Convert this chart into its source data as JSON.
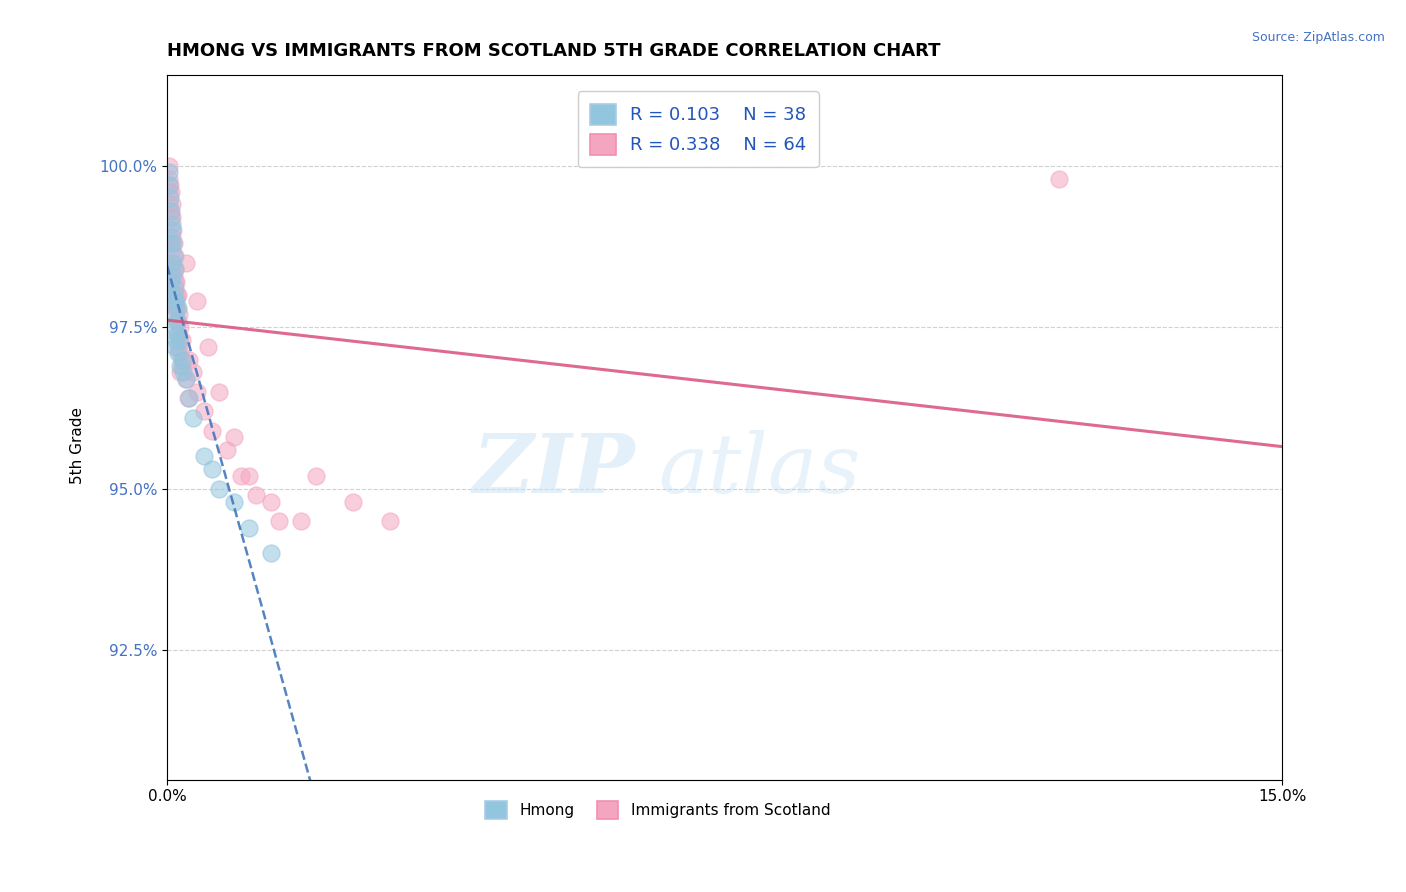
{
  "title": "HMONG VS IMMIGRANTS FROM SCOTLAND 5TH GRADE CORRELATION CHART",
  "source": "Source: ZipAtlas.com",
  "ylabel": "5th Grade",
  "ytick_labels": [
    "92.5%",
    "95.0%",
    "97.5%",
    "100.0%"
  ],
  "ytick_values": [
    92.5,
    95.0,
    97.5,
    100.0
  ],
  "xlim": [
    0.0,
    15.0
  ],
  "ylim": [
    90.5,
    101.4
  ],
  "legend_r1": "R = 0.103",
  "legend_n1": "N = 38",
  "legend_r2": "R = 0.338",
  "legend_n2": "N = 64",
  "color_blue": "#92c5de",
  "color_pink": "#f4a6c0",
  "color_blue_line": "#4477bb",
  "color_pink_line": "#d9507a",
  "hmong_x": [
    0.02,
    0.03,
    0.04,
    0.05,
    0.05,
    0.05,
    0.06,
    0.06,
    0.07,
    0.07,
    0.08,
    0.08,
    0.09,
    0.09,
    0.1,
    0.1,
    0.1,
    0.11,
    0.11,
    0.12,
    0.12,
    0.13,
    0.14,
    0.15,
    0.15,
    0.16,
    0.18,
    0.2,
    0.22,
    0.25,
    0.3,
    0.35,
    0.5,
    0.6,
    0.7,
    0.9,
    1.1,
    1.4
  ],
  "hmong_y": [
    99.9,
    99.7,
    99.5,
    99.3,
    98.8,
    98.2,
    99.1,
    98.5,
    99.0,
    98.3,
    98.8,
    98.0,
    98.6,
    97.9,
    98.4,
    97.7,
    97.2,
    98.1,
    97.5,
    97.9,
    97.3,
    97.6,
    97.4,
    97.8,
    97.1,
    97.3,
    96.9,
    97.0,
    96.8,
    96.7,
    96.4,
    96.1,
    95.5,
    95.3,
    95.0,
    94.8,
    94.4,
    94.0
  ],
  "scotland_x": [
    0.02,
    0.02,
    0.03,
    0.03,
    0.04,
    0.04,
    0.04,
    0.05,
    0.05,
    0.05,
    0.05,
    0.06,
    0.06,
    0.07,
    0.07,
    0.08,
    0.08,
    0.09,
    0.09,
    0.1,
    0.1,
    0.1,
    0.11,
    0.11,
    0.12,
    0.12,
    0.13,
    0.13,
    0.14,
    0.14,
    0.15,
    0.15,
    0.15,
    0.16,
    0.16,
    0.17,
    0.18,
    0.18,
    0.2,
    0.2,
    0.22,
    0.25,
    0.28,
    0.3,
    0.35,
    0.4,
    0.5,
    0.6,
    0.8,
    1.0,
    1.2,
    1.5,
    2.0,
    2.5,
    3.0,
    0.25,
    0.4,
    0.55,
    0.7,
    0.9,
    1.1,
    1.4,
    1.8,
    12.0
  ],
  "scotland_y": [
    100.0,
    99.6,
    99.8,
    99.4,
    99.7,
    99.3,
    98.9,
    99.6,
    99.2,
    98.8,
    98.4,
    99.4,
    98.9,
    99.2,
    98.7,
    99.0,
    98.5,
    98.8,
    98.3,
    98.6,
    98.2,
    97.8,
    98.4,
    98.0,
    98.2,
    97.8,
    98.0,
    97.6,
    97.8,
    97.4,
    98.0,
    97.6,
    97.2,
    97.7,
    97.3,
    97.5,
    97.1,
    96.8,
    97.3,
    96.9,
    97.0,
    96.7,
    96.4,
    97.0,
    96.8,
    96.5,
    96.2,
    95.9,
    95.6,
    95.2,
    94.9,
    94.5,
    95.2,
    94.8,
    94.5,
    98.5,
    97.9,
    97.2,
    96.5,
    95.8,
    95.2,
    94.8,
    94.5,
    99.8
  ]
}
